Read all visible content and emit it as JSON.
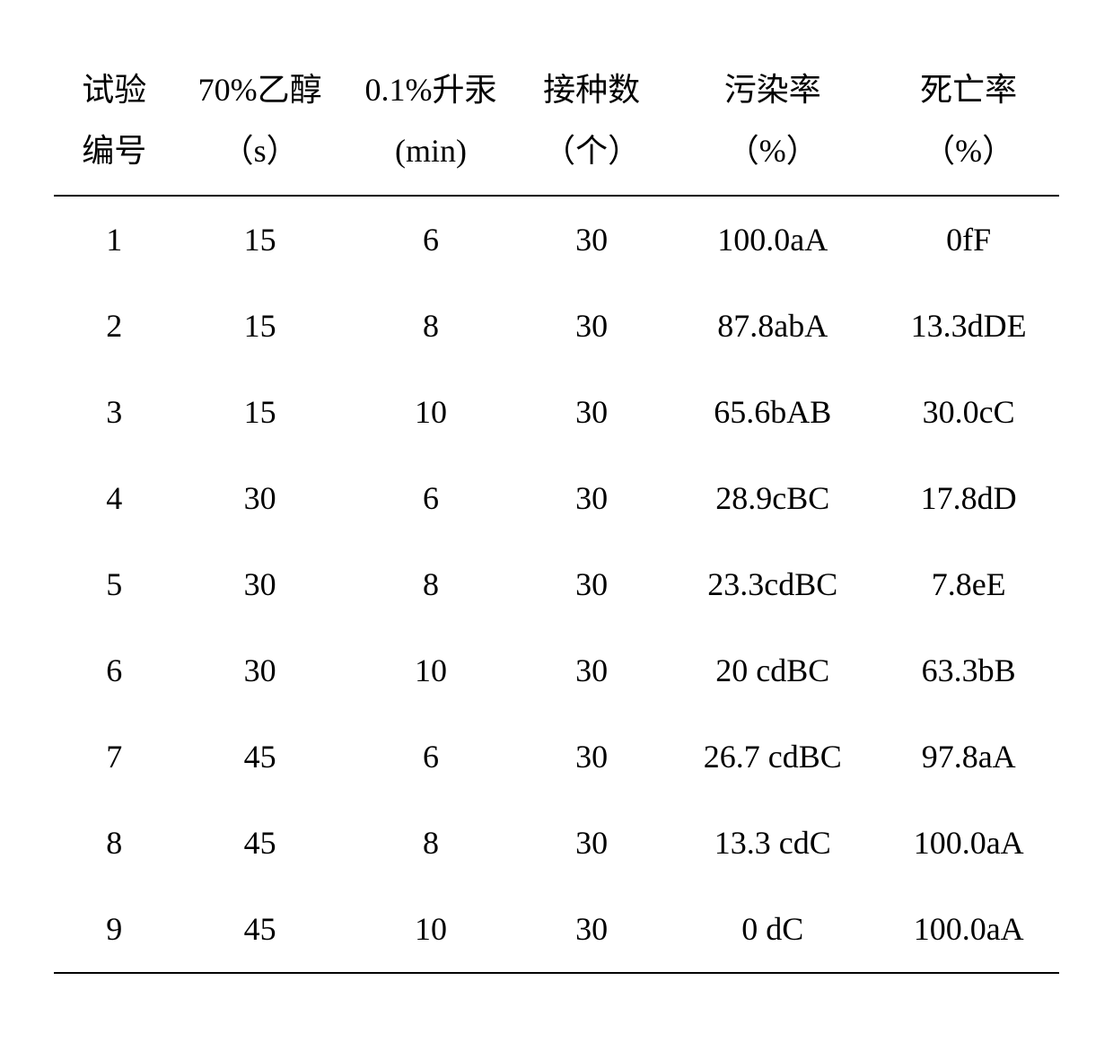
{
  "table": {
    "type": "table",
    "text_color": "#000000",
    "background_color": "#ffffff",
    "border_color": "#000000",
    "font_size_pt": 27,
    "column_widths_pct": [
      12,
      17,
      17,
      15,
      21,
      18
    ],
    "columns": [
      {
        "line1": "试验",
        "line2": "编号"
      },
      {
        "line1": "70%乙醇",
        "line2": "（s）"
      },
      {
        "line1": "0.1%升汞",
        "line2": "(min)"
      },
      {
        "line1": "接种数",
        "line2": "（个）"
      },
      {
        "line1": "污染率",
        "line2": "（%）"
      },
      {
        "line1": "死亡率",
        "line2": "（%）"
      }
    ],
    "rows": [
      [
        "1",
        "15",
        "6",
        "30",
        "100.0aA",
        "0fF"
      ],
      [
        "2",
        "15",
        "8",
        "30",
        "87.8abA",
        "13.3dDE"
      ],
      [
        "3",
        "15",
        "10",
        "30",
        "65.6bAB",
        "30.0cC"
      ],
      [
        "4",
        "30",
        "6",
        "30",
        "28.9cBC",
        "17.8dD"
      ],
      [
        "5",
        "30",
        "8",
        "30",
        "23.3cdBC",
        "7.8eE"
      ],
      [
        "6",
        "30",
        "10",
        "30",
        "20 cdBC",
        "63.3bB"
      ],
      [
        "7",
        "45",
        "6",
        "30",
        "26.7 cdBC",
        "97.8aA"
      ],
      [
        "8",
        "45",
        "8",
        "30",
        "13.3 cdC",
        "100.0aA"
      ],
      [
        "9",
        "45",
        "10",
        "30",
        "0 dC",
        "100.0aA"
      ]
    ]
  }
}
